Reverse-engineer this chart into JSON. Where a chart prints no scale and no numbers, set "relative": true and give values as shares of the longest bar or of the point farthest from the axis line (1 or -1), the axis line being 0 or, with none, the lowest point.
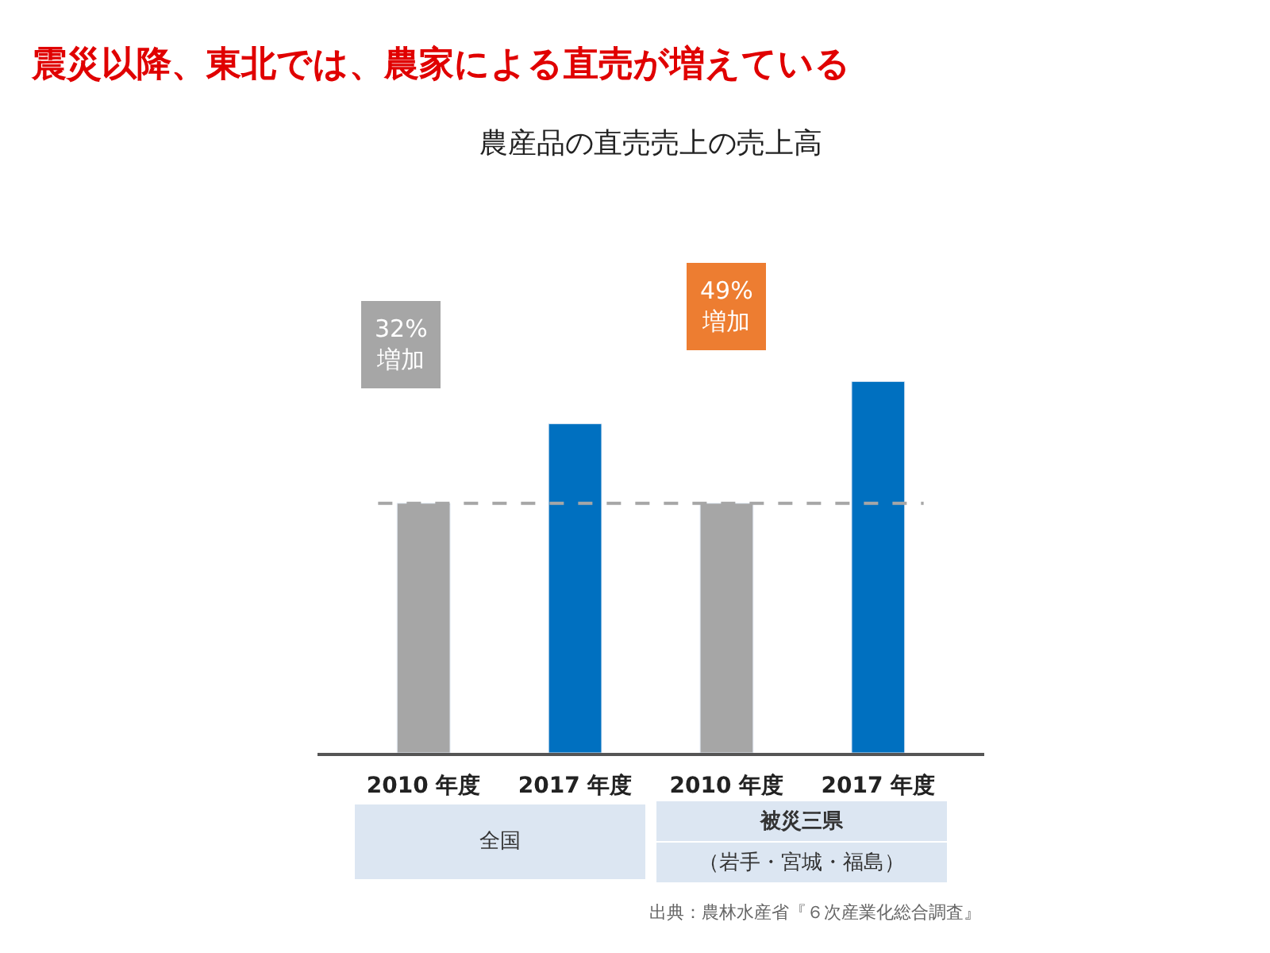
{
  "chart_data": {
    "type": "bar",
    "title": "震災以降、東北では、農家による直売が増えている",
    "subtitle": "農産品の直売売上の売上高",
    "categories": [
      "2010 年度",
      "2017 年度",
      "2010 年度",
      "2017 年度"
    ],
    "values": [
      0.672,
      0.886,
      0.672,
      1
    ],
    "colors": [
      "#a6a6a6",
      "#0070c0",
      "#a6a6a6",
      "#0070c0"
    ],
    "relative": true,
    "ref_lines": [
      {
        "axis": "y",
        "value": 0.672,
        "color": "#a6a6a6",
        "line_style": "dashed"
      }
    ],
    "annotations": [
      "全国",
      "被災三県",
      "（岩手・宮城・福島）",
      "32%\n増加",
      "49%\n増加",
      "出典：農林水産省『６次産業化総合調査』"
    ]
  }
}
